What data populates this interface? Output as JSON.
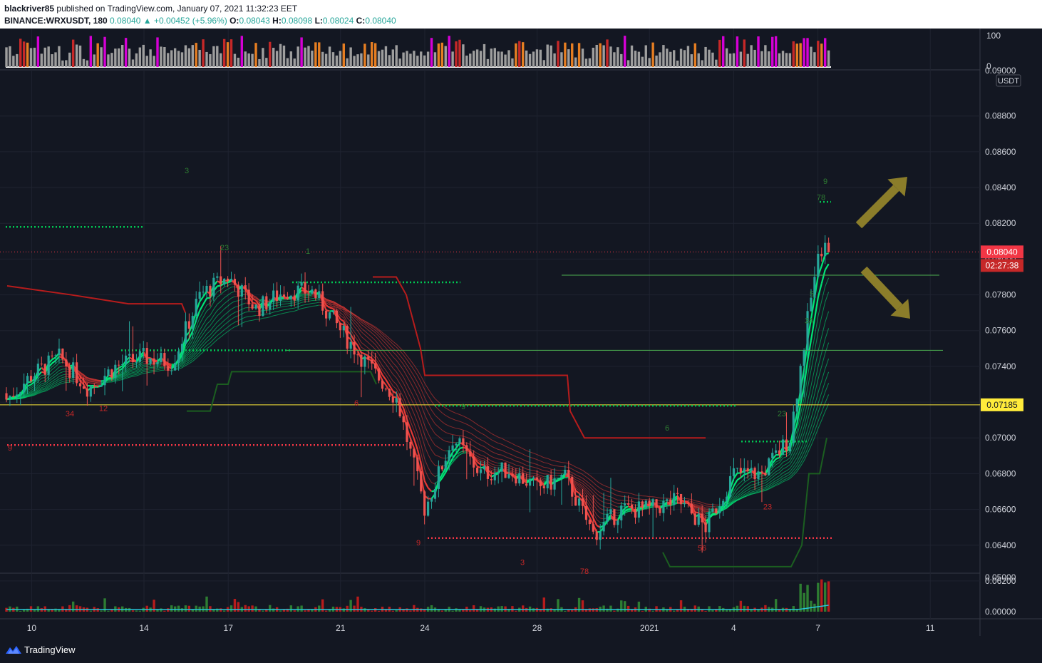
{
  "header": {
    "user": "blackriver85",
    "published_text": "published on TradingView.com, January 07, 2021 11:32:23 EET",
    "symbol": "BINANCE:WRXUSDT, 180",
    "last": "0.08040",
    "change": "+0.00452 (+5.96%)",
    "open_label": "O:",
    "open": "0.08043",
    "high_label": "H:",
    "high": "0.08098",
    "low_label": "L:",
    "low": "0.08024",
    "close_label": "C:",
    "close": "0.08040"
  },
  "footer": {
    "brand": "TradingView"
  },
  "chart_data": [
    {
      "type": "bar",
      "title": "",
      "ylim": [
        0,
        100
      ],
      "yticks": [
        "100",
        "0"
      ],
      "note": "top oscillator pane: magenta = overbought, red/orange = strong, gray = neutral",
      "colors": {
        "overbought": "#d500d5",
        "strong": "#c62828",
        "warm": "#e67e22",
        "neutral": "#9e9e9e"
      }
    },
    {
      "type": "candlestick",
      "title": "",
      "ylabel": "USDT",
      "ylim": [
        0.0612,
        0.0905
      ],
      "yticks": [
        "0.06200",
        "0.06400",
        "0.06600",
        "0.06800",
        "0.07000",
        "0.07200",
        "0.07400",
        "0.07600",
        "0.07800",
        "0.08000",
        "0.08200",
        "0.08400",
        "0.08600",
        "0.08800"
      ],
      "top_tick": "0.09000",
      "xticks": [
        "10",
        "14",
        "17",
        "21",
        "24",
        "28",
        "2021",
        "4",
        "7",
        "11"
      ],
      "close_path": [
        [
          "2020-12-09",
          0.072
        ],
        [
          "2020-12-10",
          0.0735
        ],
        [
          "2020-12-11",
          0.0745
        ],
        [
          "2020-12-12",
          0.0728
        ],
        [
          "2020-12-13",
          0.074
        ],
        [
          "2020-12-14",
          0.0745
        ],
        [
          "2020-12-15",
          0.0742
        ],
        [
          "2020-12-16",
          0.078
        ],
        [
          "2020-12-17",
          0.079
        ],
        [
          "2020-12-18",
          0.0772
        ],
        [
          "2020-12-19",
          0.0782
        ],
        [
          "2020-12-20",
          0.0782
        ],
        [
          "2020-12-21",
          0.076
        ],
        [
          "2020-12-22",
          0.074
        ],
        [
          "2020-12-23",
          0.0722
        ],
        [
          "2020-12-24",
          0.066
        ],
        [
          "2020-12-25",
          0.07
        ],
        [
          "2020-12-26",
          0.068
        ],
        [
          "2020-12-27",
          0.0682
        ],
        [
          "2020-12-28",
          0.0672
        ],
        [
          "2020-12-29",
          0.0678
        ],
        [
          "2020-12-30",
          0.0646
        ],
        [
          "2020-12-31",
          0.066
        ],
        [
          "2021-01-01",
          0.066
        ],
        [
          "2021-01-02",
          0.0665
        ],
        [
          "2021-01-03",
          0.065
        ],
        [
          "2021-01-04",
          0.068
        ],
        [
          "2021-01-05",
          0.068
        ],
        [
          "2021-01-06",
          0.07
        ],
        [
          "2021-01-07",
          0.0804
        ]
      ],
      "price_labels": [
        {
          "value": 0.0804,
          "text": "0.08040",
          "color": "#f23645"
        },
        {
          "value": 0.07185,
          "text": "0.07185",
          "color": "#ffeb3b"
        }
      ],
      "countdown": "02:27:38",
      "horizontal_lines": [
        {
          "value": 0.07185,
          "color": "#ffeb3b",
          "style": "solid"
        },
        {
          "value": 0.0791,
          "color": "#4caf50",
          "style": "solid"
        },
        {
          "value": 0.0749,
          "color": "#4caf50",
          "style": "solid"
        },
        {
          "value": 0.0818,
          "color": "#00c853",
          "style": "dotted"
        },
        {
          "value": 0.0787,
          "color": "#00c853",
          "style": "dotted"
        },
        {
          "value": 0.0749,
          "color": "#00c853",
          "style": "dotted"
        },
        {
          "value": 0.0718,
          "color": "#00c853",
          "style": "dotted"
        },
        {
          "value": 0.0698,
          "color": "#00c853",
          "style": "dotted"
        },
        {
          "value": 0.0832,
          "color": "#00c853",
          "style": "dotted"
        },
        {
          "value": 0.0696,
          "color": "#f23645",
          "style": "dotted"
        },
        {
          "value": 0.0644,
          "color": "#f23645",
          "style": "dotted"
        }
      ],
      "annotations": [
        "arrow-up-right",
        "arrow-down-right"
      ],
      "colors": {
        "up": "#26a69a",
        "down": "#ef5350",
        "ribbon_bull": "#00e676",
        "ribbon_bear": "#e53935",
        "arrow": "#8b7d2a"
      }
    },
    {
      "type": "bar",
      "title": "",
      "ylim": [
        0,
        0.05
      ],
      "yticks": [
        "0.05000",
        "0.00000"
      ],
      "note": "bottom volume pane with moving-average line",
      "colors": {
        "up": "#2e7d32",
        "down": "#b71c1c",
        "ma": "#26c6da"
      }
    }
  ]
}
